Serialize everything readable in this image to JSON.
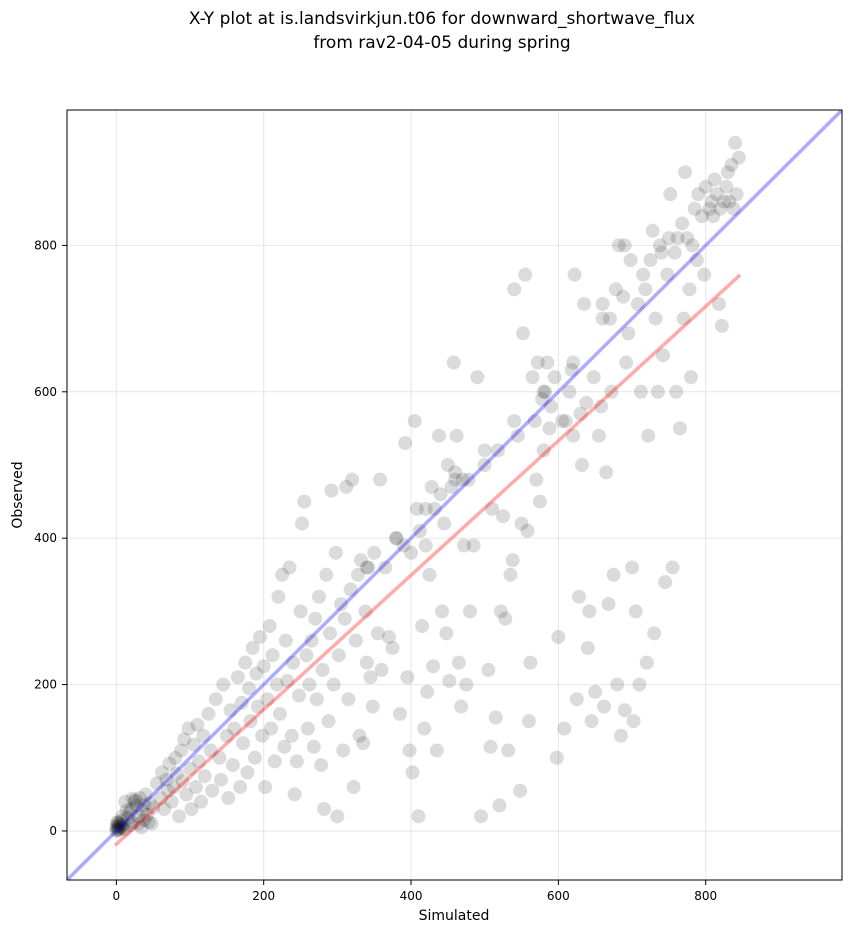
{
  "chart_data": {
    "type": "scatter",
    "title": "X-Y plot at is.landsvirkjun.t06 for downward_shortwave_flux",
    "subtitle": "from rav2-04-05 during spring",
    "xlabel": "Simulated",
    "ylabel": "Observed",
    "xlim": [
      -67,
      985
    ],
    "ylim": [
      -67,
      985
    ],
    "xticks": [
      0,
      200,
      400,
      600,
      800
    ],
    "yticks": [
      0,
      200,
      400,
      600,
      800
    ],
    "grid": true,
    "reference_line": {
      "color": "#0000ff",
      "from": [
        -67,
        -67
      ],
      "to": [
        985,
        985
      ]
    },
    "regression_line": {
      "color": "#ff0000",
      "from": [
        0,
        -18
      ],
      "to": [
        845,
        758
      ]
    },
    "point_color": "#000000",
    "points": [
      [
        0,
        0
      ],
      [
        1,
        2
      ],
      [
        2,
        5
      ],
      [
        3,
        8
      ],
      [
        4,
        3
      ],
      [
        5,
        10
      ],
      [
        6,
        6
      ],
      [
        2,
        12
      ],
      [
        8,
        4
      ],
      [
        10,
        9
      ],
      [
        7,
        14
      ],
      [
        12,
        2
      ],
      [
        3,
        1
      ],
      [
        0,
        6
      ],
      [
        1,
        11
      ],
      [
        15,
        18
      ],
      [
        18,
        25
      ],
      [
        20,
        30
      ],
      [
        22,
        12
      ],
      [
        25,
        40
      ],
      [
        28,
        35
      ],
      [
        30,
        20
      ],
      [
        32,
        45
      ],
      [
        35,
        28
      ],
      [
        38,
        15
      ],
      [
        40,
        50
      ],
      [
        42,
        22
      ],
      [
        45,
        38
      ],
      [
        48,
        10
      ],
      [
        50,
        32
      ],
      [
        12,
        40
      ],
      [
        20,
        8
      ],
      [
        26,
        42
      ],
      [
        34,
        5
      ],
      [
        44,
        12
      ],
      [
        14,
        28
      ],
      [
        8,
        20
      ],
      [
        30,
        10
      ],
      [
        22,
        44
      ],
      [
        38,
        35
      ],
      [
        55,
        65
      ],
      [
        60,
        45
      ],
      [
        62,
        80
      ],
      [
        65,
        30
      ],
      [
        68,
        70
      ],
      [
        70,
        55
      ],
      [
        72,
        92
      ],
      [
        75,
        40
      ],
      [
        78,
        60
      ],
      [
        80,
        100
      ],
      [
        82,
        78
      ],
      [
        85,
        20
      ],
      [
        88,
        110
      ],
      [
        90,
        68
      ],
      [
        92,
        125
      ],
      [
        95,
        50
      ],
      [
        98,
        140
      ],
      [
        100,
        85
      ],
      [
        102,
        30
      ],
      [
        105,
        118
      ],
      [
        108,
        60
      ],
      [
        110,
        145
      ],
      [
        112,
        95
      ],
      [
        115,
        40
      ],
      [
        118,
        130
      ],
      [
        120,
        75
      ],
      [
        125,
        160
      ],
      [
        128,
        110
      ],
      [
        130,
        55
      ],
      [
        135,
        180
      ],
      [
        140,
        100
      ],
      [
        142,
        70
      ],
      [
        145,
        200
      ],
      [
        150,
        130
      ],
      [
        152,
        45
      ],
      [
        155,
        165
      ],
      [
        158,
        90
      ],
      [
        160,
        140
      ],
      [
        165,
        210
      ],
      [
        168,
        60
      ],
      [
        170,
        175
      ],
      [
        172,
        120
      ],
      [
        175,
        230
      ],
      [
        178,
        80
      ],
      [
        180,
        195
      ],
      [
        182,
        150
      ],
      [
        185,
        250
      ],
      [
        188,
        100
      ],
      [
        190,
        215
      ],
      [
        192,
        170
      ],
      [
        195,
        265
      ],
      [
        198,
        130
      ],
      [
        200,
        225
      ],
      [
        202,
        60
      ],
      [
        205,
        180
      ],
      [
        208,
        280
      ],
      [
        210,
        140
      ],
      [
        212,
        240
      ],
      [
        215,
        95
      ],
      [
        218,
        200
      ],
      [
        220,
        320
      ],
      [
        222,
        160
      ],
      [
        225,
        350
      ],
      [
        228,
        115
      ],
      [
        230,
        260
      ],
      [
        232,
        205
      ],
      [
        235,
        360
      ],
      [
        238,
        130
      ],
      [
        240,
        230
      ],
      [
        242,
        50
      ],
      [
        245,
        95
      ],
      [
        248,
        185
      ],
      [
        250,
        300
      ],
      [
        252,
        420
      ],
      [
        255,
        450
      ],
      [
        258,
        240
      ],
      [
        260,
        140
      ],
      [
        262,
        200
      ],
      [
        265,
        260
      ],
      [
        268,
        115
      ],
      [
        270,
        290
      ],
      [
        272,
        180
      ],
      [
        275,
        320
      ],
      [
        278,
        90
      ],
      [
        280,
        220
      ],
      [
        282,
        30
      ],
      [
        285,
        350
      ],
      [
        288,
        150
      ],
      [
        290,
        270
      ],
      [
        292,
        465
      ],
      [
        295,
        200
      ],
      [
        298,
        380
      ],
      [
        300,
        20
      ],
      [
        302,
        240
      ],
      [
        305,
        310
      ],
      [
        308,
        110
      ],
      [
        310,
        290
      ],
      [
        312,
        470
      ],
      [
        315,
        180
      ],
      [
        318,
        330
      ],
      [
        320,
        480
      ],
      [
        322,
        60
      ],
      [
        325,
        260
      ],
      [
        328,
        350
      ],
      [
        330,
        130
      ],
      [
        332,
        370
      ],
      [
        335,
        120
      ],
      [
        338,
        300
      ],
      [
        340,
        230
      ],
      [
        342,
        360
      ],
      [
        345,
        210
      ],
      [
        348,
        170
      ],
      [
        350,
        380
      ],
      [
        355,
        270
      ],
      [
        358,
        480
      ],
      [
        360,
        220
      ],
      [
        365,
        360
      ],
      [
        370,
        265
      ],
      [
        375,
        250
      ],
      [
        380,
        400
      ],
      [
        385,
        160
      ],
      [
        390,
        390
      ],
      [
        392,
        530
      ],
      [
        395,
        210
      ],
      [
        398,
        110
      ],
      [
        400,
        380
      ],
      [
        402,
        80
      ],
      [
        405,
        560
      ],
      [
        408,
        440
      ],
      [
        410,
        20
      ],
      [
        412,
        410
      ],
      [
        415,
        280
      ],
      [
        418,
        140
      ],
      [
        420,
        390
      ],
      [
        422,
        190
      ],
      [
        425,
        350
      ],
      [
        428,
        470
      ],
      [
        430,
        225
      ],
      [
        432,
        440
      ],
      [
        435,
        110
      ],
      [
        438,
        540
      ],
      [
        440,
        460
      ],
      [
        442,
        300
      ],
      [
        445,
        420
      ],
      [
        448,
        270
      ],
      [
        450,
        500
      ],
      [
        452,
        205
      ],
      [
        455,
        470
      ],
      [
        458,
        640
      ],
      [
        460,
        490
      ],
      [
        462,
        540
      ],
      [
        465,
        230
      ],
      [
        468,
        170
      ],
      [
        470,
        480
      ],
      [
        472,
        390
      ],
      [
        475,
        200
      ],
      [
        478,
        480
      ],
      [
        480,
        300
      ],
      [
        485,
        390
      ],
      [
        490,
        620
      ],
      [
        495,
        20
      ],
      [
        500,
        500
      ],
      [
        505,
        220
      ],
      [
        508,
        115
      ],
      [
        510,
        440
      ],
      [
        515,
        155
      ],
      [
        518,
        520
      ],
      [
        520,
        35
      ],
      [
        522,
        300
      ],
      [
        525,
        430
      ],
      [
        528,
        290
      ],
      [
        532,
        110
      ],
      [
        535,
        350
      ],
      [
        538,
        370
      ],
      [
        540,
        740
      ],
      [
        545,
        540
      ],
      [
        548,
        55
      ],
      [
        550,
        420
      ],
      [
        552,
        680
      ],
      [
        555,
        760
      ],
      [
        558,
        410
      ],
      [
        560,
        150
      ],
      [
        562,
        230
      ],
      [
        565,
        620
      ],
      [
        568,
        560
      ],
      [
        570,
        480
      ],
      [
        572,
        640
      ],
      [
        575,
        450
      ],
      [
        578,
        590
      ],
      [
        580,
        520
      ],
      [
        582,
        600
      ],
      [
        585,
        640
      ],
      [
        588,
        550
      ],
      [
        590,
        580
      ],
      [
        595,
        620
      ],
      [
        598,
        100
      ],
      [
        600,
        265
      ],
      [
        605,
        560
      ],
      [
        608,
        140
      ],
      [
        610,
        560
      ],
      [
        615,
        600
      ],
      [
        618,
        630
      ],
      [
        620,
        540
      ],
      [
        622,
        760
      ],
      [
        625,
        180
      ],
      [
        628,
        320
      ],
      [
        630,
        570
      ],
      [
        632,
        500
      ],
      [
        635,
        720
      ],
      [
        638,
        585
      ],
      [
        640,
        250
      ],
      [
        642,
        300
      ],
      [
        645,
        150
      ],
      [
        648,
        620
      ],
      [
        650,
        190
      ],
      [
        655,
        540
      ],
      [
        658,
        580
      ],
      [
        660,
        720
      ],
      [
        662,
        170
      ],
      [
        665,
        490
      ],
      [
        668,
        310
      ],
      [
        670,
        700
      ],
      [
        672,
        600
      ],
      [
        675,
        350
      ],
      [
        678,
        740
      ],
      [
        680,
        200
      ],
      [
        682,
        800
      ],
      [
        685,
        130
      ],
      [
        688,
        730
      ],
      [
        690,
        165
      ],
      [
        692,
        640
      ],
      [
        695,
        680
      ],
      [
        698,
        780
      ],
      [
        700,
        360
      ],
      [
        702,
        150
      ],
      [
        705,
        300
      ],
      [
        708,
        720
      ],
      [
        710,
        200
      ],
      [
        712,
        600
      ],
      [
        715,
        760
      ],
      [
        718,
        740
      ],
      [
        720,
        230
      ],
      [
        722,
        540
      ],
      [
        725,
        780
      ],
      [
        728,
        820
      ],
      [
        730,
        270
      ],
      [
        732,
        700
      ],
      [
        735,
        600
      ],
      [
        738,
        800
      ],
      [
        740,
        790
      ],
      [
        742,
        650
      ],
      [
        745,
        340
      ],
      [
        748,
        760
      ],
      [
        750,
        810
      ],
      [
        752,
        870
      ],
      [
        755,
        360
      ],
      [
        758,
        790
      ],
      [
        760,
        600
      ],
      [
        762,
        810
      ],
      [
        765,
        550
      ],
      [
        768,
        830
      ],
      [
        770,
        700
      ],
      [
        772,
        900
      ],
      [
        775,
        810
      ],
      [
        778,
        740
      ],
      [
        780,
        620
      ],
      [
        782,
        800
      ],
      [
        785,
        850
      ],
      [
        788,
        780
      ],
      [
        790,
        870
      ],
      [
        795,
        840
      ],
      [
        798,
        760
      ],
      [
        800,
        880
      ],
      [
        805,
        850
      ],
      [
        808,
        860
      ],
      [
        810,
        840
      ],
      [
        812,
        890
      ],
      [
        815,
        870
      ],
      [
        818,
        720
      ],
      [
        820,
        850
      ],
      [
        822,
        690
      ],
      [
        825,
        860
      ],
      [
        828,
        880
      ],
      [
        830,
        900
      ],
      [
        832,
        860
      ],
      [
        835,
        910
      ],
      [
        838,
        850
      ],
      [
        840,
        940
      ],
      [
        842,
        870
      ],
      [
        845,
        920
      ],
      [
        690,
        800
      ],
      [
        660,
        700
      ],
      [
        620,
        640
      ],
      [
        580,
        600
      ],
      [
        540,
        560
      ],
      [
        500,
        520
      ],
      [
        460,
        480
      ],
      [
        420,
        440
      ],
      [
        380,
        400
      ],
      [
        340,
        360
      ]
    ]
  }
}
